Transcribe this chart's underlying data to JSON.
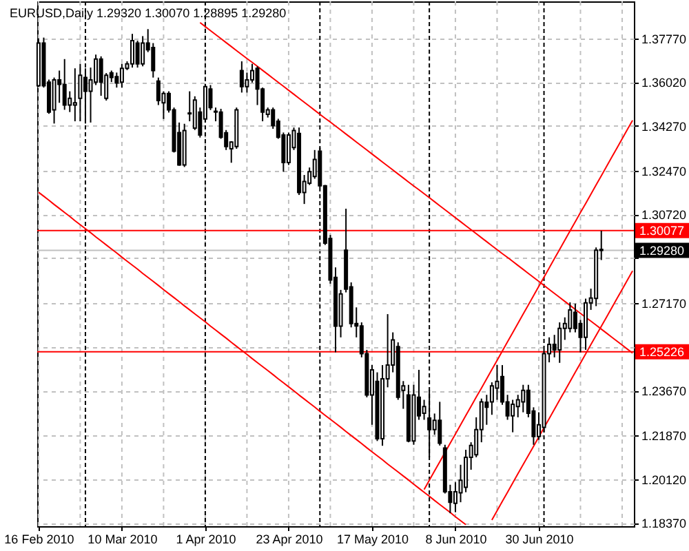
{
  "chart_data": {
    "type": "candlestick",
    "title": "EURUSD,Daily 1.29320 1.30070 1.28895 1.29280",
    "categories": [
      "16 Feb 2010",
      null,
      null,
      null,
      null,
      null,
      null,
      null,
      null,
      null,
      null,
      null,
      null,
      null,
      null,
      null,
      "10 Mar 2010",
      null,
      null,
      null,
      null,
      null,
      null,
      null,
      null,
      null,
      null,
      null,
      null,
      null,
      null,
      null,
      "1 Apr 2010",
      null,
      null,
      null,
      null,
      null,
      null,
      null,
      null,
      null,
      null,
      null,
      null,
      null,
      null,
      null,
      "23 Apr 2010",
      null,
      null,
      null,
      null,
      null,
      null,
      null,
      null,
      null,
      null,
      null,
      null,
      null,
      null,
      null,
      "17 May 2010",
      null,
      null,
      null,
      null,
      null,
      null,
      null,
      null,
      null,
      null,
      null,
      null,
      null,
      null,
      null,
      "8 Jun 2010",
      null,
      null,
      null,
      null,
      null,
      null,
      null,
      null,
      null,
      null,
      null,
      null,
      null,
      null,
      null,
      "30 Jun 2010",
      null,
      null,
      null,
      null,
      null,
      null,
      null,
      null,
      null,
      null,
      null,
      null,
      null,
      null,
      null,
      null,
      null,
      null
    ],
    "ohlc": [
      [
        1.3587,
        1.3777,
        1.3583,
        1.3758
      ],
      [
        1.3758,
        1.378,
        1.358,
        1.3587
      ],
      [
        1.3602,
        1.3612,
        1.3475,
        1.3482
      ],
      [
        1.3491,
        1.362,
        1.3436,
        1.3611
      ],
      [
        1.3611,
        1.3648,
        1.3519,
        1.3593
      ],
      [
        1.3592,
        1.3694,
        1.3491,
        1.351
      ],
      [
        1.351,
        1.3565,
        1.3482,
        1.3537
      ],
      [
        1.351,
        1.3657,
        1.3445,
        1.3519
      ],
      [
        1.3537,
        1.3675,
        1.3445,
        1.3629
      ],
      [
        1.362,
        1.3657,
        1.3436,
        1.3565
      ],
      [
        1.3565,
        1.366,
        1.344,
        1.3611
      ],
      [
        1.3602,
        1.3712,
        1.359,
        1.3694
      ],
      [
        1.3694,
        1.3705,
        1.3547,
        1.3602
      ],
      [
        1.3537,
        1.3638,
        1.3528,
        1.3629
      ],
      [
        1.3639,
        1.3648,
        1.3602,
        1.362
      ],
      [
        1.3624,
        1.364,
        1.358,
        1.3598
      ],
      [
        1.3602,
        1.3675,
        1.358,
        1.3657
      ],
      [
        1.3657,
        1.3685,
        1.365,
        1.3675
      ],
      [
        1.3675,
        1.3795,
        1.366,
        1.3768
      ],
      [
        1.3758,
        1.3768,
        1.366,
        1.3675
      ],
      [
        1.3675,
        1.3786,
        1.3665,
        1.3758
      ],
      [
        1.3758,
        1.3814,
        1.3722,
        1.3731
      ],
      [
        1.374,
        1.3758,
        1.362,
        1.3648
      ],
      [
        1.3606,
        1.362,
        1.351,
        1.3528
      ],
      [
        1.3519,
        1.3565,
        1.3454,
        1.3556
      ],
      [
        1.3556,
        1.3565,
        1.348,
        1.3491
      ],
      [
        1.3491,
        1.35,
        1.332,
        1.3325
      ],
      [
        1.34,
        1.344,
        1.3267,
        1.327
      ],
      [
        1.327,
        1.3435,
        1.3262,
        1.3408
      ],
      [
        1.3478,
        1.3565,
        1.3445,
        1.3475
      ],
      [
        1.3418,
        1.3545,
        1.341,
        1.353
      ],
      [
        1.3482,
        1.35,
        1.338,
        1.339
      ],
      [
        1.3454,
        1.3595,
        1.344,
        1.3584
      ],
      [
        1.3574,
        1.359,
        1.349,
        1.35
      ],
      [
        1.3485,
        1.35,
        1.3445,
        1.3482
      ],
      [
        1.3482,
        1.3495,
        1.3375,
        1.3381
      ],
      [
        1.3399,
        1.341,
        1.333,
        1.3344
      ],
      [
        1.3335,
        1.3365,
        1.3279,
        1.3362
      ],
      [
        1.3344,
        1.35,
        1.3335,
        1.3491
      ],
      [
        1.3648,
        1.3685,
        1.356,
        1.3584
      ],
      [
        1.3584,
        1.364,
        1.356,
        1.3611
      ],
      [
        1.3611,
        1.3675,
        1.36,
        1.3648
      ],
      [
        1.3657,
        1.3665,
        1.351,
        1.3574
      ],
      [
        1.3574,
        1.358,
        1.3445,
        1.3482
      ],
      [
        1.3473,
        1.35,
        1.346,
        1.3491
      ],
      [
        1.3491,
        1.35,
        1.3415,
        1.3427
      ],
      [
        1.3445,
        1.3455,
        1.3375,
        1.3381
      ],
      [
        1.339,
        1.34,
        1.3243,
        1.328
      ],
      [
        1.328,
        1.34,
        1.327,
        1.339
      ],
      [
        1.334,
        1.342,
        1.333,
        1.3408
      ],
      [
        1.3396,
        1.342,
        1.315,
        1.316
      ],
      [
        1.316,
        1.323,
        1.3114,
        1.3204
      ],
      [
        1.3197,
        1.326,
        1.319,
        1.3243
      ],
      [
        1.3224,
        1.333,
        1.3215,
        1.3292
      ],
      [
        1.3325,
        1.334,
        1.318,
        1.3187
      ],
      [
        1.3187,
        1.319,
        1.295,
        1.2957
      ],
      [
        1.2976,
        1.299,
        1.2795,
        1.281
      ],
      [
        1.282,
        1.286,
        1.252,
        1.2625
      ],
      [
        1.2625,
        1.277,
        1.258,
        1.2754
      ],
      [
        1.2929,
        1.3095,
        1.276,
        1.2773
      ],
      [
        1.2782,
        1.28,
        1.262,
        1.2635
      ],
      [
        1.2635,
        1.27,
        1.258,
        1.2626
      ],
      [
        1.2626,
        1.264,
        1.25,
        1.2515
      ],
      [
        1.2515,
        1.253,
        1.234,
        1.2349
      ],
      [
        1.2349,
        1.247,
        1.223,
        1.245
      ],
      [
        1.2404,
        1.244,
        1.2165,
        1.2174
      ],
      [
        1.2174,
        1.2469,
        1.2146,
        1.2414
      ],
      [
        1.2414,
        1.2673,
        1.238,
        1.2469
      ],
      [
        1.2469,
        1.26,
        1.244,
        1.257
      ],
      [
        1.2543,
        1.256,
        1.233,
        1.234
      ],
      [
        1.2368,
        1.2405,
        1.2294,
        1.2386
      ],
      [
        1.2349,
        1.239,
        1.216,
        1.2165
      ],
      [
        1.2165,
        1.239,
        1.215,
        1.2349
      ],
      [
        1.234,
        1.245,
        1.225,
        1.2266
      ],
      [
        1.2276,
        1.233,
        1.225,
        1.2303
      ],
      [
        1.2257,
        1.2368,
        1.21,
        1.2211
      ],
      [
        1.2211,
        1.2275,
        1.219,
        1.2248
      ],
      [
        1.2248,
        1.2322,
        1.2147,
        1.2156
      ],
      [
        1.2137,
        1.215,
        1.1955,
        1.1962
      ],
      [
        1.1962,
        1.199,
        1.1876,
        1.192
      ],
      [
        1.1916,
        1.2,
        1.188,
        1.1962
      ],
      [
        1.1958,
        1.207,
        1.192,
        1.2008
      ],
      [
        1.198,
        1.213,
        1.196,
        1.21
      ],
      [
        1.21,
        1.216,
        1.205,
        1.2147
      ],
      [
        1.211,
        1.226,
        1.21,
        1.2211
      ],
      [
        1.2211,
        1.2335,
        1.216,
        1.2322
      ],
      [
        1.232,
        1.235,
        1.223,
        1.23
      ],
      [
        1.2322,
        1.24,
        1.227,
        1.2386
      ],
      [
        1.2377,
        1.247,
        1.233,
        1.2404
      ],
      [
        1.2423,
        1.2469,
        1.231,
        1.2322
      ],
      [
        1.2322,
        1.235,
        1.225,
        1.2266
      ],
      [
        1.2266,
        1.233,
        1.22,
        1.2312
      ],
      [
        1.2303,
        1.235,
        1.226,
        1.233
      ],
      [
        1.2322,
        1.239,
        1.228,
        1.2368
      ],
      [
        1.2368,
        1.239,
        1.226,
        1.2276
      ],
      [
        1.2285,
        1.23,
        1.215,
        1.2183
      ],
      [
        1.2183,
        1.228,
        1.217,
        1.223
      ],
      [
        1.222,
        1.253,
        1.22,
        1.2515
      ],
      [
        1.2515,
        1.258,
        1.248,
        1.2552
      ],
      [
        1.2552,
        1.259,
        1.25,
        1.253
      ],
      [
        1.253,
        1.264,
        1.2478,
        1.2616
      ],
      [
        1.2616,
        1.266,
        1.257,
        1.2635
      ],
      [
        1.2616,
        1.272,
        1.26,
        1.269
      ],
      [
        1.268,
        1.2715,
        1.26,
        1.2616
      ],
      [
        1.2635,
        1.265,
        1.252,
        1.258
      ],
      [
        1.258,
        1.2735,
        1.253,
        1.2718
      ],
      [
        1.2718,
        1.2775,
        1.269,
        1.2737
      ],
      [
        1.2736,
        1.294,
        1.2705,
        1.2929
      ],
      [
        1.2932,
        1.3007,
        1.28895,
        1.2928
      ],
      null,
      null,
      null,
      null,
      null,
      null
    ],
    "series": [
      {
        "type": "line",
        "color": "#ff0000",
        "values": [
          null,
          null,
          null,
          null,
          null,
          null,
          null,
          null,
          null,
          null,
          null,
          null,
          null,
          null,
          null,
          null,
          null,
          null,
          null,
          null,
          null,
          null,
          null,
          null,
          null,
          null,
          null,
          null,
          null,
          null,
          null,
          1.384,
          1.3824,
          1.3808,
          1.3792,
          1.3776,
          1.376,
          1.3744,
          1.3728,
          1.3712,
          1.3696,
          1.3681,
          1.3665,
          1.3649,
          1.3633,
          1.3617,
          1.3601,
          1.3585,
          1.3569,
          1.3553,
          1.3537,
          1.3521,
          1.3505,
          1.3489,
          1.3473,
          1.3457,
          1.3442,
          1.3426,
          1.341,
          1.3394,
          1.3378,
          1.3362,
          1.3346,
          1.333,
          1.3314,
          1.3298,
          1.3282,
          1.3266,
          1.325,
          1.3234,
          1.3218,
          1.3202,
          1.3186,
          1.3171,
          1.3155,
          1.3139,
          1.3123,
          1.3107,
          1.3091,
          1.3075,
          1.3059,
          1.3043,
          1.3027,
          1.3011,
          1.2995,
          1.2979,
          1.2963,
          1.2947,
          1.2931,
          1.2915,
          1.29,
          1.2884,
          1.2868,
          1.2852,
          1.2836,
          1.282,
          1.2804,
          1.2788,
          1.2772,
          1.2756,
          1.274,
          1.2724,
          1.2708,
          1.2692,
          1.2676,
          1.266,
          1.2645,
          1.2629,
          1.2613,
          1.2597,
          1.2581,
          1.2565,
          1.2549,
          1.2533,
          1.2517
        ]
      },
      {
        "type": "line",
        "color": "#ff0000",
        "values": [
          1.3161,
          1.3145,
          1.3129,
          1.3112,
          1.3096,
          1.308,
          1.3064,
          1.3047,
          1.3031,
          1.3015,
          1.2999,
          1.2982,
          1.2966,
          1.295,
          1.2934,
          1.2918,
          1.2901,
          1.2885,
          1.2869,
          1.2853,
          1.2836,
          1.282,
          1.2804,
          1.2788,
          1.2771,
          1.2755,
          1.2739,
          1.2723,
          1.2706,
          1.269,
          1.2674,
          1.2658,
          1.2642,
          1.2625,
          1.2609,
          1.2593,
          1.2577,
          1.256,
          1.2544,
          1.2528,
          1.2512,
          1.2495,
          1.2479,
          1.2463,
          1.2447,
          1.2431,
          1.2414,
          1.2398,
          1.2382,
          1.2366,
          1.2349,
          1.2333,
          1.2317,
          1.2301,
          1.2284,
          1.2268,
          1.2252,
          1.2236,
          1.222,
          1.2203,
          1.2187,
          1.2171,
          1.2155,
          1.2138,
          1.2122,
          1.2106,
          1.209,
          1.2073,
          1.2057,
          1.2041,
          1.2025,
          1.2009,
          1.1992,
          1.1976,
          1.196,
          1.1944,
          1.1927,
          1.1911,
          1.1895,
          1.1879,
          1.1862,
          1.1846,
          1.183,
          null,
          null,
          null,
          null,
          null,
          null,
          null,
          null,
          null,
          null,
          null,
          null,
          null,
          null,
          null,
          null,
          null,
          null,
          null,
          null,
          null,
          null,
          null,
          null,
          null,
          null,
          null,
          null,
          null,
          null,
          null,
          null
        ]
      },
      {
        "type": "line",
        "color": "#ff0000",
        "values": [
          null,
          null,
          null,
          null,
          null,
          null,
          null,
          null,
          null,
          null,
          null,
          null,
          null,
          null,
          null,
          null,
          null,
          null,
          null,
          null,
          null,
          null,
          null,
          null,
          null,
          null,
          null,
          null,
          null,
          null,
          null,
          null,
          null,
          null,
          null,
          null,
          null,
          null,
          null,
          null,
          null,
          null,
          null,
          null,
          null,
          null,
          null,
          null,
          null,
          null,
          null,
          null,
          null,
          null,
          null,
          null,
          null,
          null,
          null,
          null,
          null,
          null,
          null,
          null,
          null,
          null,
          null,
          null,
          null,
          null,
          null,
          null,
          null,
          null,
          1.1971,
          1.2008,
          1.2045,
          1.2082,
          1.2119,
          1.2156,
          1.2193,
          1.223,
          1.2267,
          1.2304,
          1.2341,
          1.2377,
          1.2414,
          1.2451,
          1.2488,
          1.2525,
          1.2562,
          1.2599,
          1.2636,
          1.2673,
          1.271,
          1.2747,
          1.2784,
          1.2821,
          1.2858,
          1.2895,
          1.2932,
          1.2969,
          1.3006,
          1.3043,
          1.308,
          1.3116,
          1.3153,
          1.319,
          1.3227,
          1.3264,
          1.3301,
          1.3338,
          1.3375,
          1.3412,
          1.3449
        ]
      },
      {
        "type": "line",
        "color": "#ff0000",
        "values": [
          null,
          null,
          null,
          null,
          null,
          null,
          null,
          null,
          null,
          null,
          null,
          null,
          null,
          null,
          null,
          null,
          null,
          null,
          null,
          null,
          null,
          null,
          null,
          null,
          null,
          null,
          null,
          null,
          null,
          null,
          null,
          null,
          null,
          null,
          null,
          null,
          null,
          null,
          null,
          null,
          null,
          null,
          null,
          null,
          null,
          null,
          null,
          null,
          null,
          null,
          null,
          null,
          null,
          null,
          null,
          null,
          null,
          null,
          null,
          null,
          null,
          null,
          null,
          null,
          null,
          null,
          null,
          null,
          null,
          null,
          null,
          null,
          null,
          null,
          null,
          null,
          null,
          null,
          null,
          null,
          null,
          null,
          null,
          null,
          null,
          null,
          null,
          1.1849,
          1.1886,
          1.1923,
          1.196,
          1.1997,
          1.2034,
          1.2071,
          1.2107,
          1.2144,
          1.2181,
          1.2218,
          1.2255,
          1.2292,
          1.2329,
          1.2366,
          1.2403,
          1.244,
          1.2477,
          1.2514,
          1.2551,
          1.2588,
          1.2624,
          1.2661,
          1.2698,
          1.2735,
          1.2772,
          1.2809,
          1.2846
        ]
      }
    ],
    "ylim": [
      1.1824,
      1.3925
    ],
    "yticks": [
      {
        "value": 1.3777,
        "label": "1.37770"
      },
      {
        "value": 1.3602,
        "label": "1.36020"
      },
      {
        "value": 1.3427,
        "label": "1.34270"
      },
      {
        "value": 1.3247,
        "label": "1.32470"
      },
      {
        "value": 1.3072,
        "label": "1.30720"
      },
      {
        "value": 1.2897,
        "label": null
      },
      {
        "value": 1.2717,
        "label": "1.27170"
      },
      {
        "value": 1.2542,
        "label": null
      },
      {
        "value": 1.2367,
        "label": "1.23670"
      },
      {
        "value": 1.2187,
        "label": "1.21870"
      },
      {
        "value": 1.2012,
        "label": "1.20120"
      },
      {
        "value": 1.1837,
        "label": "1.18370"
      }
    ],
    "grid": true,
    "ref_lines": [
      {
        "axis": "y",
        "value": 1.2928,
        "label": "1.29280",
        "color": "#c0c0c0"
      },
      {
        "axis": "y",
        "value": 1.30077,
        "label": "1.30077",
        "color": "#ff0000"
      },
      {
        "axis": "y",
        "value": 1.25226,
        "label": "1.25226",
        "color": "#ff0000"
      }
    ]
  }
}
